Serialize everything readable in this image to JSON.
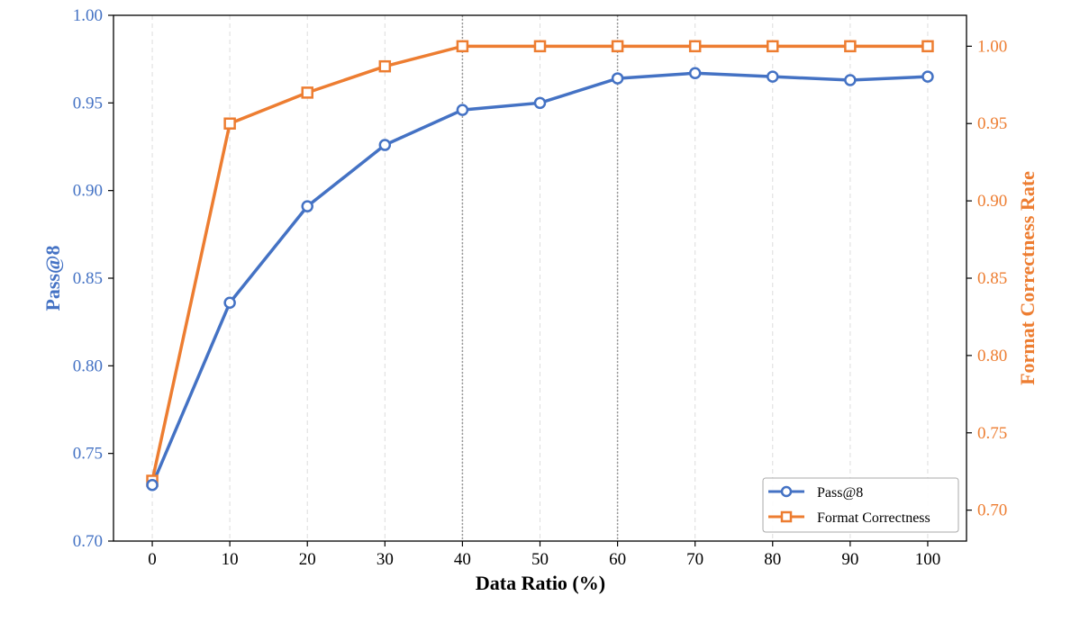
{
  "chart_data": {
    "type": "line",
    "title": "",
    "xlabel": "Data Ratio (%)",
    "ylabel_left": "Pass@8",
    "ylabel_right": "Format Correctness Rate",
    "x": [
      0,
      10,
      20,
      30,
      40,
      50,
      60,
      70,
      80,
      90,
      100
    ],
    "xticks": [
      "0",
      "10",
      "20",
      "30",
      "40",
      "50",
      "60",
      "70",
      "80",
      "90",
      "100"
    ],
    "xlim": [
      -5,
      105
    ],
    "ylim_left": [
      0.7,
      1.0
    ],
    "yticks_left": [
      "0.70",
      "0.75",
      "0.80",
      "0.85",
      "0.90",
      "0.95",
      "1.00"
    ],
    "ylim_right": [
      0.68,
      1.02
    ],
    "yticks_right": [
      "0.70",
      "0.75",
      "0.80",
      "0.85",
      "0.90",
      "0.95",
      "1.00"
    ],
    "vertical_reference_lines": [
      40,
      60
    ],
    "grid": "vertical dashed",
    "legend_placement": "lower-right",
    "series": [
      {
        "name": "Pass@8",
        "axis": "left",
        "marker": "circle",
        "color": "#4472C4",
        "values": [
          0.732,
          0.836,
          0.891,
          0.926,
          0.946,
          0.95,
          0.964,
          0.967,
          0.965,
          0.963,
          0.965
        ]
      },
      {
        "name": "Format Correctness",
        "axis": "right",
        "marker": "square",
        "color": "#ED7D31",
        "values": [
          0.719,
          0.95,
          0.97,
          0.987,
          1.0,
          1.0,
          1.0,
          1.0,
          1.0,
          1.0,
          1.0
        ]
      }
    ]
  }
}
